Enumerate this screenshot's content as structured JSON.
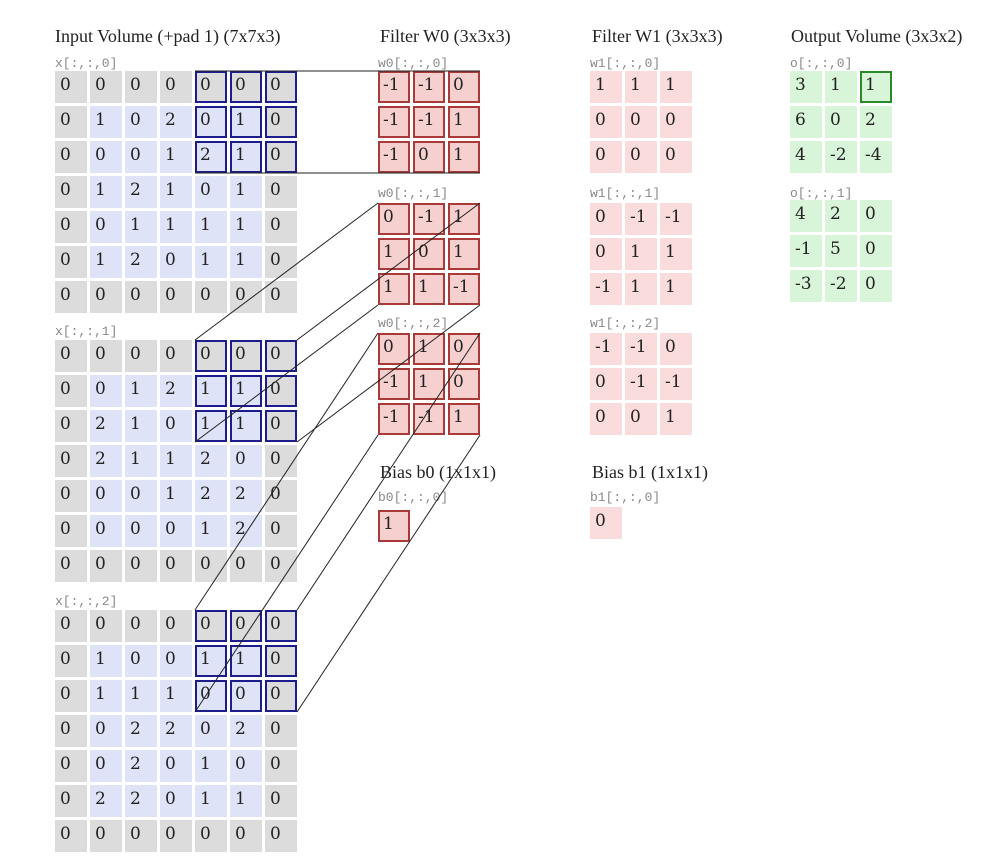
{
  "titles": {
    "input": "Input Volume (+pad 1) (7x7x3)",
    "w0": "Filter W0 (3x3x3)",
    "w1": "Filter W1 (3x3x3)",
    "output": "Output Volume (3x3x2)",
    "b0": "Bias b0 (1x1x1)",
    "b1": "Bias b1 (1x1x1)"
  },
  "labels": {
    "x0": "x[:,:,0]",
    "x1": "x[:,:,1]",
    "x2": "x[:,:,2]",
    "w00": "w0[:,:,0]",
    "w01": "w0[:,:,1]",
    "w02": "w0[:,:,2]",
    "w10": "w1[:,:,0]",
    "w11": "w1[:,:,1]",
    "w12": "w1[:,:,2]",
    "b0": "b0[:,:,0]",
    "b1": "b1[:,:,0]",
    "o0": "o[:,:,0]",
    "o1": "o[:,:,1]"
  },
  "input": [
    [
      [
        0,
        0,
        0,
        0,
        0,
        0,
        0
      ],
      [
        0,
        1,
        0,
        2,
        0,
        1,
        0
      ],
      [
        0,
        0,
        0,
        1,
        2,
        1,
        0
      ],
      [
        0,
        1,
        2,
        1,
        0,
        1,
        0
      ],
      [
        0,
        0,
        1,
        1,
        1,
        1,
        0
      ],
      [
        0,
        1,
        2,
        0,
        1,
        1,
        0
      ],
      [
        0,
        0,
        0,
        0,
        0,
        0,
        0
      ]
    ],
    [
      [
        0,
        0,
        0,
        0,
        0,
        0,
        0
      ],
      [
        0,
        0,
        1,
        2,
        1,
        1,
        0
      ],
      [
        0,
        2,
        1,
        0,
        1,
        1,
        0
      ],
      [
        0,
        2,
        1,
        1,
        2,
        0,
        0
      ],
      [
        0,
        0,
        0,
        1,
        2,
        2,
        0
      ],
      [
        0,
        0,
        0,
        0,
        1,
        2,
        0
      ],
      [
        0,
        0,
        0,
        0,
        0,
        0,
        0
      ]
    ],
    [
      [
        0,
        0,
        0,
        0,
        0,
        0,
        0
      ],
      [
        0,
        1,
        0,
        0,
        1,
        1,
        0
      ],
      [
        0,
        1,
        1,
        1,
        0,
        0,
        0
      ],
      [
        0,
        0,
        2,
        2,
        0,
        2,
        0
      ],
      [
        0,
        0,
        2,
        0,
        1,
        0,
        0
      ],
      [
        0,
        2,
        2,
        0,
        1,
        1,
        0
      ],
      [
        0,
        0,
        0,
        0,
        0,
        0,
        0
      ]
    ]
  ],
  "w0": [
    [
      [
        -1,
        -1,
        0
      ],
      [
        -1,
        -1,
        1
      ],
      [
        -1,
        0,
        1
      ]
    ],
    [
      [
        0,
        -1,
        1
      ],
      [
        1,
        0,
        1
      ],
      [
        1,
        1,
        -1
      ]
    ],
    [
      [
        0,
        1,
        0
      ],
      [
        -1,
        1,
        0
      ],
      [
        -1,
        -1,
        1
      ]
    ]
  ],
  "w1": [
    [
      [
        1,
        1,
        1
      ],
      [
        0,
        0,
        0
      ],
      [
        0,
        0,
        0
      ]
    ],
    [
      [
        0,
        -1,
        -1
      ],
      [
        0,
        1,
        1
      ],
      [
        -1,
        1,
        1
      ]
    ],
    [
      [
        -1,
        -1,
        0
      ],
      [
        0,
        -1,
        -1
      ],
      [
        0,
        0,
        1
      ]
    ]
  ],
  "b0": 1,
  "b1": 0,
  "output": [
    [
      [
        3,
        1,
        1
      ],
      [
        6,
        0,
        2
      ],
      [
        4,
        -2,
        -4
      ]
    ],
    [
      [
        4,
        2,
        0
      ],
      [
        -1,
        5,
        0
      ],
      [
        -3,
        -2,
        0
      ]
    ]
  ],
  "highlight": {
    "input_rows": [
      0,
      2
    ],
    "input_cols": [
      4,
      6
    ],
    "output_cell": [
      0,
      0,
      2
    ]
  },
  "colors": {
    "input_pad": "#dcdcdc",
    "input_inner": "#dfe3f8",
    "highlight": "#1c1c8c",
    "filter": "#f6cfcf",
    "filter_border": "#a83a3a",
    "output": "#d9f5d9"
  }
}
